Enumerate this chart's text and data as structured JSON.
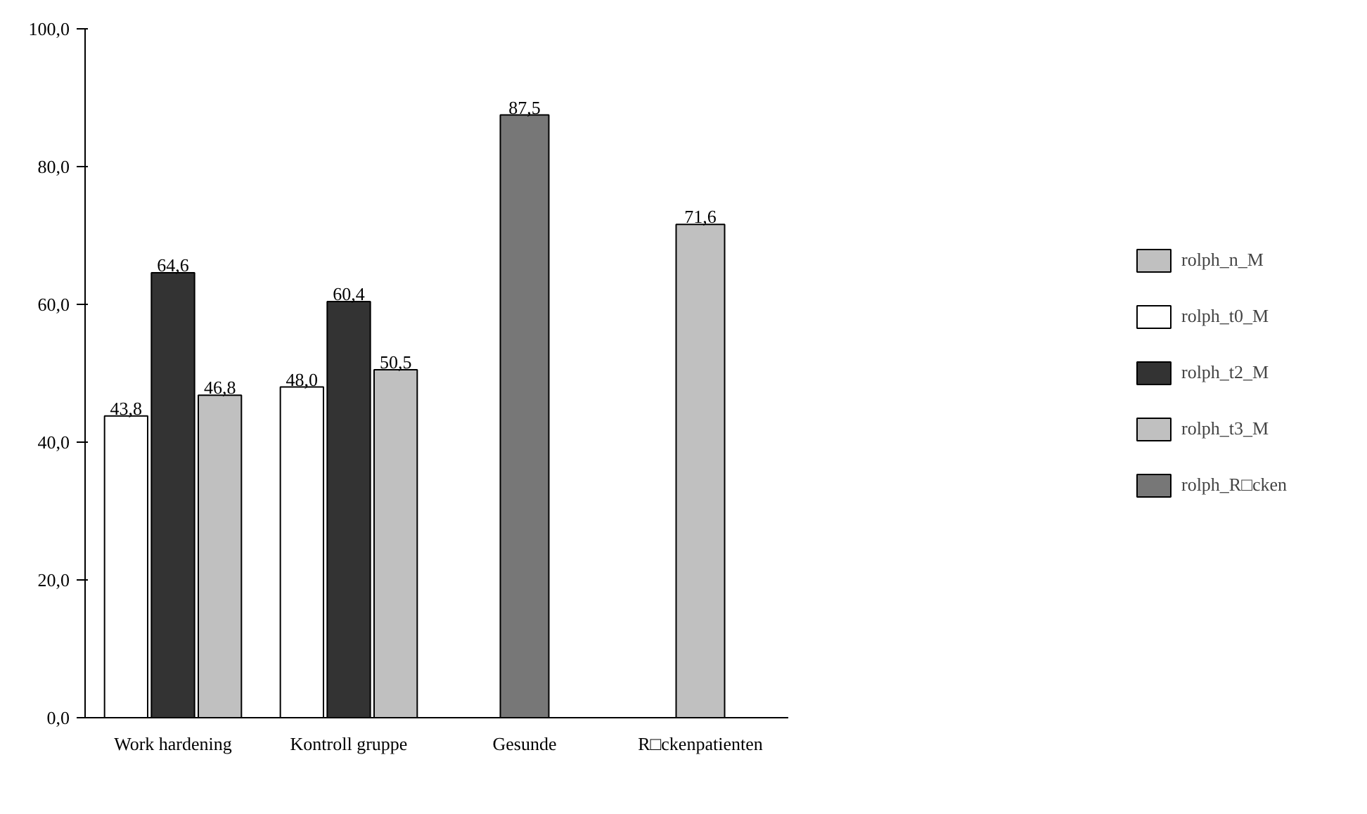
{
  "chart_data": {
    "type": "bar",
    "categories": [
      "Work hardening",
      "Kontroll gruppe",
      "Gesunde",
      "R□ckenpatienten"
    ],
    "series": [
      {
        "name": "rolph_n_M",
        "color": "#c0c0c0",
        "values": [
          null,
          null,
          null,
          71.6
        ],
        "value_labels": [
          null,
          null,
          null,
          "71,6"
        ]
      },
      {
        "name": "rolph_t0_M",
        "color": "#ffffff",
        "values": [
          43.8,
          48.0,
          null,
          null
        ],
        "value_labels": [
          "43,8",
          "48,0",
          null,
          null
        ]
      },
      {
        "name": "rolph_t2_M",
        "color": "#333333",
        "values": [
          64.6,
          60.4,
          null,
          null
        ],
        "value_labels": [
          "64,6",
          "60,4",
          null,
          null
        ]
      },
      {
        "name": "rolph_t3_M",
        "color": "#c0c0c0",
        "values": [
          46.8,
          50.5,
          null,
          null
        ],
        "value_labels": [
          "46,8",
          "50,5",
          null,
          null
        ]
      },
      {
        "name": "rolph_R□cken",
        "color": "#777777",
        "values": [
          null,
          null,
          87.5,
          null
        ],
        "value_labels": [
          null,
          null,
          "87,5",
          null
        ]
      }
    ],
    "ylim": [
      0,
      100
    ],
    "yticks": [
      {
        "value": 0,
        "label": "0,0"
      },
      {
        "value": 20,
        "label": "20,0"
      },
      {
        "value": 40,
        "label": "40,0"
      },
      {
        "value": 60,
        "label": "60,0"
      },
      {
        "value": 80,
        "label": "80,0"
      },
      {
        "value": 100,
        "label": "100,0"
      }
    ],
    "grid": false,
    "legend": "right"
  }
}
